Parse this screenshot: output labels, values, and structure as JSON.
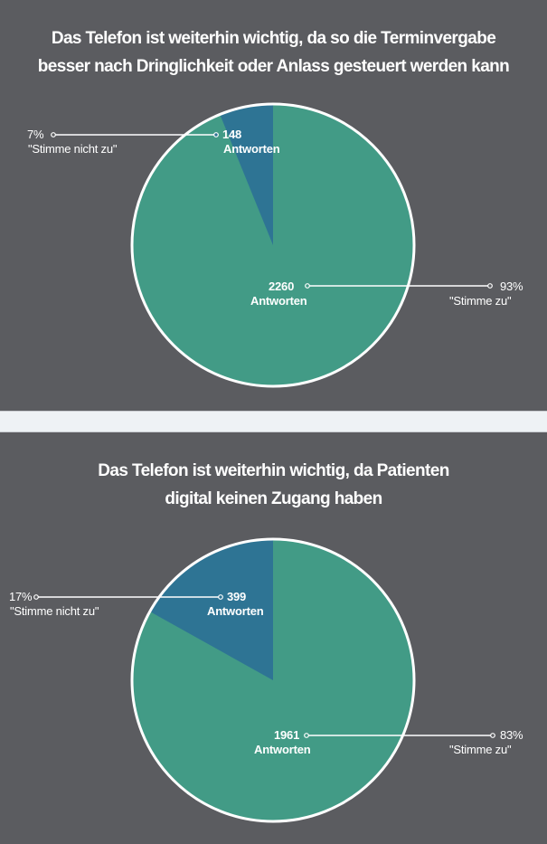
{
  "colors": {
    "background": "#5b5c60",
    "separator": "#eef2f5",
    "agree": "#429b86",
    "disagree": "#2e7494",
    "outline": "#ffffff"
  },
  "charts": [
    {
      "title_line1": "Das Telefon ist weiterhin wichtig, da so die Terminvergabe",
      "title_line2": "besser nach Dringlichkeit oder Anlass gesteuert werden kann",
      "disagree": {
        "pct": "7%",
        "label": "\"Stimme nicht zu\"",
        "count": "148",
        "unit": "Antworten"
      },
      "agree": {
        "pct": "93%",
        "label": "\"Stimme zu\"",
        "count": "2260",
        "unit": "Antworten"
      }
    },
    {
      "title_line1": "Das Telefon ist weiterhin wichtig, da Patienten",
      "title_line2": "digital keinen Zugang haben",
      "disagree": {
        "pct": "17%",
        "label": "\"Stimme nicht zu\"",
        "count": "399",
        "unit": "Antworten"
      },
      "agree": {
        "pct": "83%",
        "label": "\"Stimme zu\"",
        "count": "1961",
        "unit": "Antworten"
      }
    }
  ],
  "chart_data": [
    {
      "type": "pie",
      "title": "Das Telefon ist weiterhin wichtig, da so die Terminvergabe besser nach Dringlichkeit oder Anlass gesteuert werden kann",
      "categories": [
        "\"Stimme zu\"",
        "\"Stimme nicht zu\""
      ],
      "values": [
        2260,
        148
      ],
      "percentages": [
        93,
        7
      ],
      "colors": [
        "#429b86",
        "#2e7494"
      ],
      "unit": "Antworten"
    },
    {
      "type": "pie",
      "title": "Das Telefon ist weiterhin wichtig, da Patienten digital keinen Zugang haben",
      "categories": [
        "\"Stimme zu\"",
        "\"Stimme nicht zu\""
      ],
      "values": [
        1961,
        399
      ],
      "percentages": [
        83,
        17
      ],
      "colors": [
        "#429b86",
        "#2e7494"
      ],
      "unit": "Antworten"
    }
  ]
}
